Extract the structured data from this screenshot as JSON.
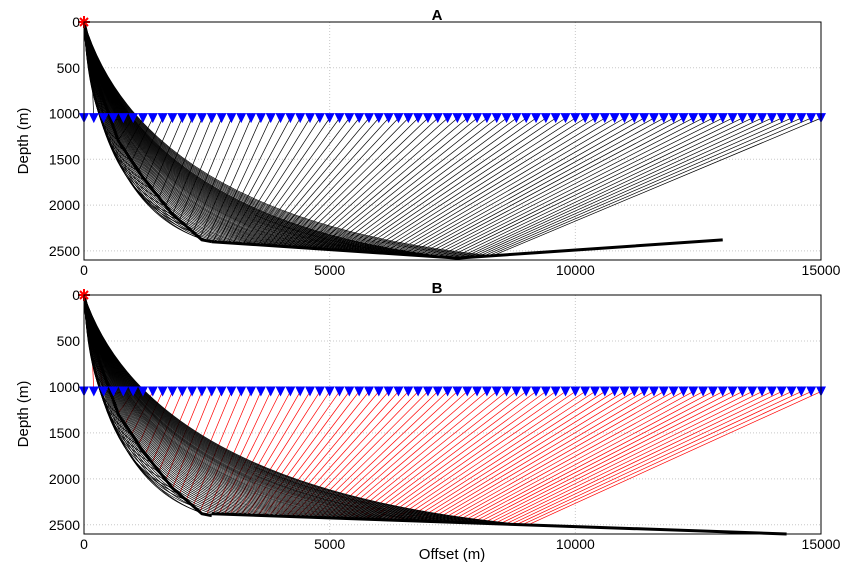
{
  "chart_data": [
    {
      "type": "line",
      "title": "A",
      "xlabel": "",
      "ylabel": "Depth (m)",
      "xlim": [
        0,
        15000
      ],
      "ylim": [
        2600,
        0
      ],
      "y_reversed": true,
      "xticks": [
        "0",
        "5000",
        "10000",
        "15000"
      ],
      "yticks": [
        "0",
        "500",
        "1000",
        "1500",
        "2000",
        "2500"
      ],
      "grid": true,
      "source": {
        "x": 0,
        "y": 0,
        "marker": "asterisk",
        "color": "#ff0000"
      },
      "receivers": {
        "depth": 1050,
        "x_start": 0,
        "x_end": 15000,
        "count": 76,
        "marker": "triangle-down",
        "color": "#0000ff"
      },
      "reflector": {
        "x": [
          0,
          300,
          700,
          1200,
          1800,
          2400,
          2600
        ],
        "depth": [
          0,
          700,
          1300,
          1700,
          2100,
          2380,
          2400
        ]
      },
      "bottom_horizon": {
        "x": [
          2600,
          7600,
          13000
        ],
        "depth": [
          2400,
          2580,
          2380
        ]
      },
      "ray_fan": {
        "count": 76,
        "down_leg_color": "#000000",
        "up_leg_color": "#000000",
        "turning_offsets_approx": [
          0,
          15000
        ],
        "max_depth": 2600
      }
    },
    {
      "type": "line",
      "title": "B",
      "xlabel": "Offset (m)",
      "ylabel": "Depth (m)",
      "xlim": [
        0,
        15000
      ],
      "ylim": [
        2600,
        0
      ],
      "y_reversed": true,
      "xticks": [
        "0",
        "5000",
        "10000",
        "15000"
      ],
      "yticks": [
        "0",
        "500",
        "1000",
        "1500",
        "2000",
        "2500"
      ],
      "grid": true,
      "source": {
        "x": 0,
        "y": 0,
        "marker": "asterisk",
        "color": "#ff0000"
      },
      "receivers": {
        "depth": 1050,
        "x_start": 0,
        "x_end": 15000,
        "count": 76,
        "marker": "triangle-down",
        "color": "#0000ff"
      },
      "reflector": {
        "x": [
          0,
          300,
          700,
          1200,
          1800,
          2400,
          2600
        ],
        "depth": [
          0,
          700,
          1300,
          1700,
          2100,
          2380,
          2400
        ]
      },
      "bottom_horizon": {
        "x": [
          2600,
          14300
        ],
        "depth": [
          2380,
          2600
        ]
      },
      "ray_fan": {
        "count": 76,
        "down_leg_color": "#000000",
        "up_leg_color": "#ff0000",
        "turning_offsets_approx": [
          0,
          15000
        ],
        "max_depth": 2600
      }
    }
  ]
}
